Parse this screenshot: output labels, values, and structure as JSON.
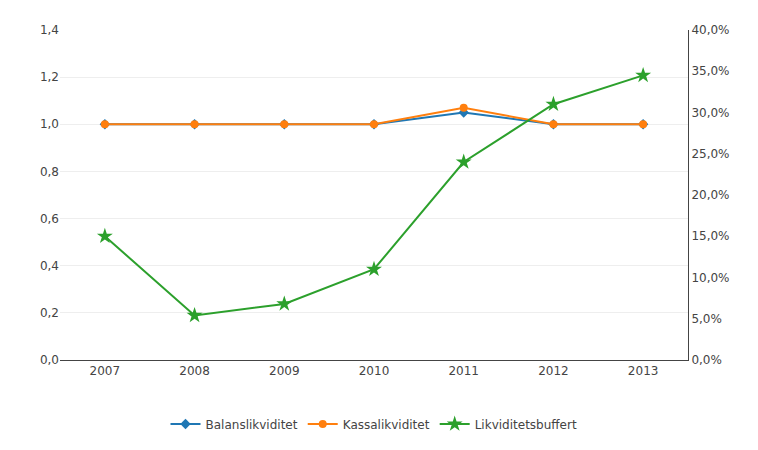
{
  "chart_data": {
    "type": "line",
    "x": [
      2007,
      2008,
      2009,
      2010,
      2011,
      2012,
      2013
    ],
    "xlim": [
      2006.5,
      2013.5
    ],
    "xticks": [
      2007,
      2008,
      2009,
      2010,
      2011,
      2012,
      2013
    ],
    "ylim": [
      0,
      1.4
    ],
    "yticks": [
      {
        "value": 0.0,
        "label": "0,0"
      },
      {
        "value": 0.2,
        "label": "0,2"
      },
      {
        "value": 0.4,
        "label": "0,4"
      },
      {
        "value": 0.6,
        "label": "0,6"
      },
      {
        "value": 0.8,
        "label": "0,8"
      },
      {
        "value": 1.0,
        "label": "1,0"
      },
      {
        "value": 1.2,
        "label": "1,2"
      },
      {
        "value": 1.4,
        "label": "1,4"
      }
    ],
    "y2lim": [
      0.0,
      0.4
    ],
    "y2ticks": [
      {
        "value": 0.0,
        "label": "0,0%"
      },
      {
        "value": 0.05,
        "label": "5,0%"
      },
      {
        "value": 0.1,
        "label": "10,0%"
      },
      {
        "value": 0.15,
        "label": "15,0%"
      },
      {
        "value": 0.2,
        "label": "20,0%"
      },
      {
        "value": 0.25,
        "label": "25,0%"
      },
      {
        "value": 0.3,
        "label": "30,0%"
      },
      {
        "value": 0.35,
        "label": "35,0%"
      },
      {
        "value": 0.4,
        "label": "40,0%"
      }
    ],
    "grid": true,
    "legend": "bottom",
    "series": [
      {
        "name": "Balanslikviditet",
        "values": [
          1.0,
          1.0,
          1.0,
          1.0,
          1.05,
          1.0,
          1.0
        ],
        "marker": "diamond"
      },
      {
        "name": "Kassalikviditet",
        "values": [
          1.0,
          1.0,
          1.0,
          1.0,
          1.07,
          1.0,
          1.0
        ],
        "marker": "circle"
      },
      {
        "name": "Likviditetsbuffert",
        "axis": "y2",
        "values": [
          0.15,
          0.054,
          0.068,
          0.11,
          0.24,
          0.31,
          0.345
        ],
        "marker": "star"
      }
    ]
  }
}
